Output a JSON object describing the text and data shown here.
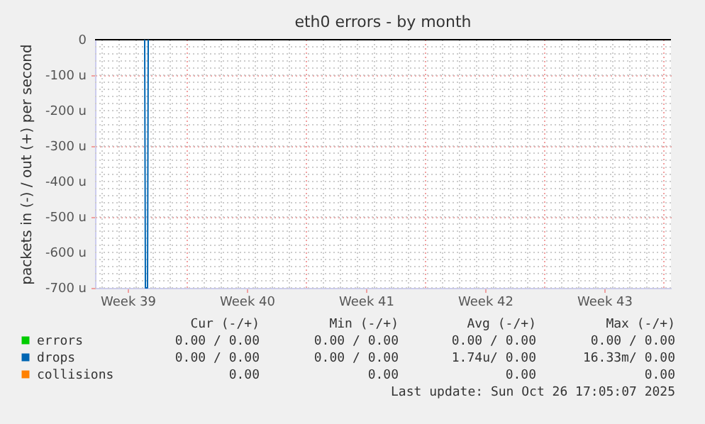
{
  "chart_data": {
    "type": "line",
    "title": "eth0 errors - by month",
    "ylabel": "packets in (-) / out (+) per second",
    "xlim": [
      "2025-09-23T14:00",
      "2025-10-27T10:00"
    ],
    "ylim": [
      -700,
      0
    ],
    "xticks": [
      {
        "value": "2025-09-25T12:00",
        "label": "Week 39"
      },
      {
        "value": "2025-10-02T12:00",
        "label": "Week 40"
      },
      {
        "value": "2025-10-09T12:00",
        "label": "Week 41"
      },
      {
        "value": "2025-10-16T12:00",
        "label": "Week 42"
      },
      {
        "value": "2025-10-23T12:00",
        "label": "Week 43"
      }
    ],
    "yticks": [
      {
        "value": 0,
        "label": "0"
      },
      {
        "value": -100,
        "label": "-100 u"
      },
      {
        "value": -200,
        "label": "-200 u"
      },
      {
        "value": -300,
        "label": "-300 u"
      },
      {
        "value": -400,
        "label": "-400 u"
      },
      {
        "value": -500,
        "label": "-500 u"
      },
      {
        "value": -600,
        "label": "-600 u"
      },
      {
        "value": -700,
        "label": "-700 u"
      }
    ],
    "grid": true,
    "legend": "bottom left",
    "marker": "none",
    "line_style": "solid",
    "series": [
      {
        "name": "errors",
        "color": "#00cc00"
      },
      {
        "name": "drops",
        "color": "#0066b3",
        "x": [
          "2025-09-26T12:00",
          "2025-09-26T13:00",
          "2025-09-26T16:00",
          "2025-09-26T17:00"
        ],
        "values": [
          0,
          -700,
          -700,
          0
        ]
      },
      {
        "name": "collisions",
        "color": "#ff8000"
      }
    ],
    "annotations": [
      "Cur (-/+)",
      "Min (-/+)",
      "Avg (-/+)",
      "Max (-/+)",
      "0.00 /  0.00",
      "0.00 /  0.00",
      "0.00 /  0.00",
      "0.00 /  0.00",
      "0.00 /  0.00",
      "0.00 /  0.00",
      "1.74u/  0.00",
      "16.33m/  0.00",
      "0.00",
      "0.00",
      "0.00",
      "0.00",
      "Last update: Sun Oct 26 17:05:07 2025"
    ]
  }
}
